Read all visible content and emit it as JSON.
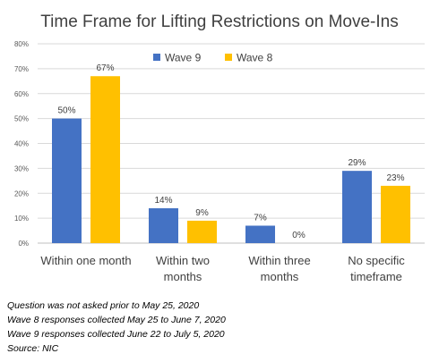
{
  "chart_data": {
    "type": "bar",
    "title": "Time Frame for Lifting Restrictions on Move-Ins",
    "categories": [
      [
        "Within one month"
      ],
      [
        "Within two",
        "months"
      ],
      [
        "Within three",
        "months"
      ],
      [
        "No specific",
        "timeframe"
      ]
    ],
    "series": [
      {
        "name": "Wave 9",
        "color": "#4472C4",
        "values": [
          50,
          14,
          7,
          29
        ],
        "labels": [
          "50%",
          "14%",
          "7%",
          "29%"
        ]
      },
      {
        "name": "Wave 8",
        "color": "#FFC000",
        "values": [
          67,
          9,
          0,
          23
        ],
        "labels": [
          "67%",
          "9%",
          "0%",
          "23%"
        ]
      }
    ],
    "ylim": [
      0,
      80
    ],
    "yticks": [
      "0%",
      "10%",
      "20%",
      "30%",
      "40%",
      "50%",
      "60%",
      "70%",
      "80%"
    ],
    "grid": true,
    "legend_position": "top-center"
  },
  "notes": [
    "Question was not asked prior to May 25, 2020",
    "Wave 8 responses collected May 25 to June 7, 2020",
    "Wave 9 responses collected June 22 to July 5, 2020",
    "Source: NIC"
  ]
}
